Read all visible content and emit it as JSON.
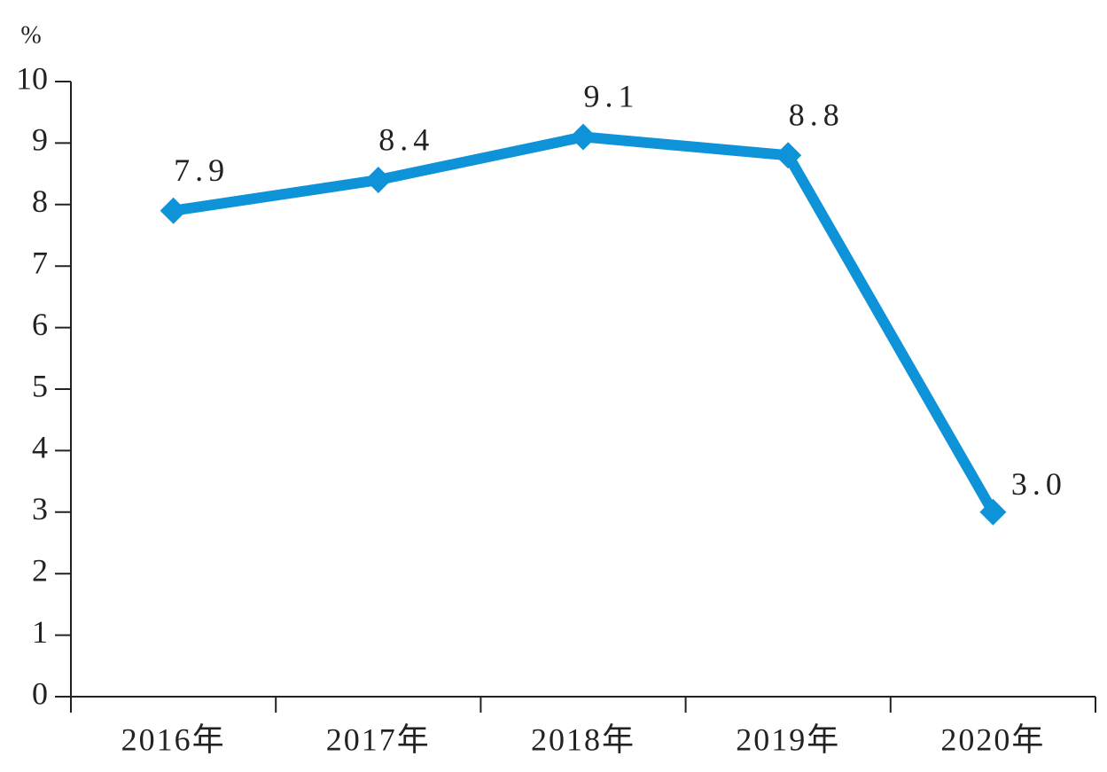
{
  "chart_data": {
    "type": "line",
    "y_label": "%",
    "categories": [
      "2016年",
      "2017年",
      "2018年",
      "2019年",
      "2020年"
    ],
    "series": [
      {
        "name": null,
        "color": "#0e93d8",
        "values": [
          7.9,
          8.4,
          9.1,
          8.8,
          3.0
        ],
        "value_labels": [
          "7.9",
          "8.4",
          "9.1",
          "8.8",
          "3.0"
        ]
      }
    ],
    "ylim": [
      0,
      10
    ],
    "yticks": [
      0,
      1,
      2,
      3,
      4,
      5,
      6,
      7,
      8,
      9,
      10
    ],
    "grid": false
  }
}
